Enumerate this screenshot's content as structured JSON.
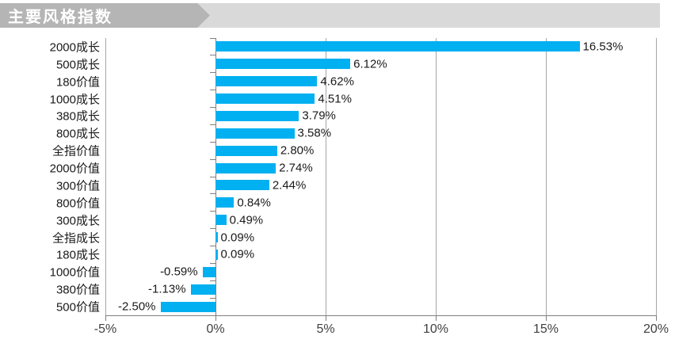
{
  "banner": {
    "title": "主要风格指数",
    "bg_light": "#d9d9d9",
    "bg_dark": "#b5b5b5",
    "title_color": "#ffffff"
  },
  "chart_data": {
    "type": "bar",
    "orientation": "horizontal",
    "title": "主要风格指数",
    "categories": [
      "2000成长",
      "500成长",
      "180价值",
      "1000成长",
      "380成长",
      "800成长",
      "全指价值",
      "2000价值",
      "300价值",
      "800价值",
      "300成长",
      "全指成长",
      "180成长",
      "1000价值",
      "380价值",
      "500价值"
    ],
    "values": [
      16.53,
      6.12,
      4.62,
      4.51,
      3.79,
      3.58,
      2.8,
      2.74,
      2.44,
      0.84,
      0.49,
      0.09,
      0.09,
      -0.59,
      -1.13,
      -2.5
    ],
    "data_labels": [
      "16.53%",
      "6.12%",
      "4.62%",
      "4.51%",
      "3.79%",
      "3.58%",
      "2.80%",
      "2.74%",
      "2.44%",
      "0.84%",
      "0.49%",
      "0.09%",
      "0.09%",
      "-0.59%",
      "-1.13%",
      "-2.50%"
    ],
    "xlim": [
      -5,
      20
    ],
    "x_ticks": [
      -5,
      0,
      5,
      10,
      15,
      20
    ],
    "x_tick_labels": [
      "-5%",
      "0%",
      "5%",
      "10%",
      "15%",
      "20%"
    ],
    "grid": true,
    "legend": false,
    "bar_color": "#00b0f0",
    "grid_color": "#a6a6a6",
    "axis_color": "#7f7f7f",
    "label_color": "#1a1a1a"
  }
}
